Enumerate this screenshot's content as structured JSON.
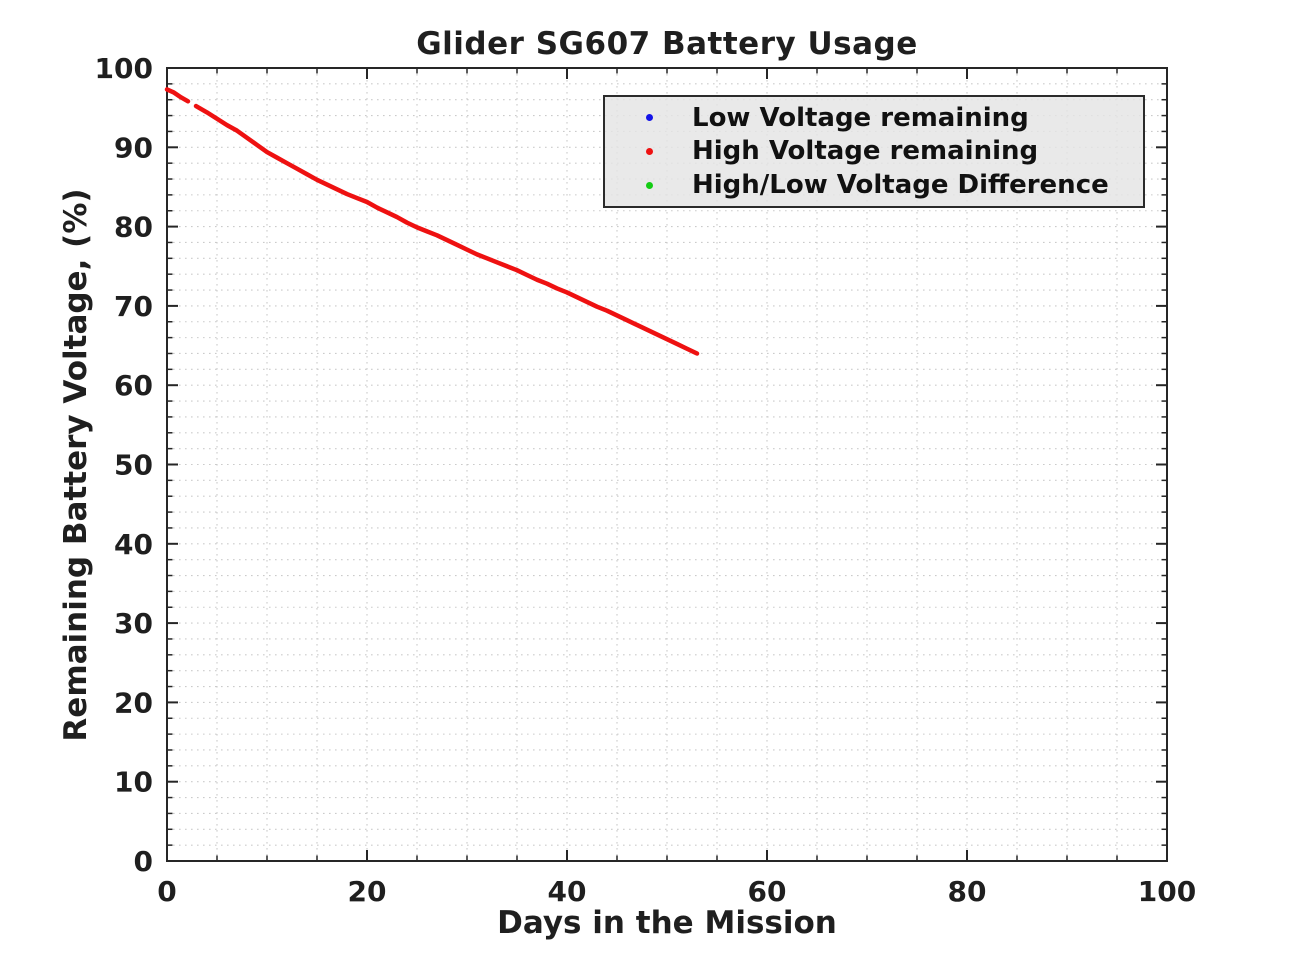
{
  "chart_data": {
    "type": "scatter",
    "title": "Glider SG607 Battery Usage",
    "xlabel": "Days in the Mission",
    "ylabel": "Remaining Battery Voltage, (%)",
    "xlim": [
      0,
      100
    ],
    "ylim": [
      0,
      100
    ],
    "x_major_ticks": [
      0,
      20,
      40,
      60,
      80,
      100
    ],
    "y_major_ticks": [
      0,
      10,
      20,
      30,
      40,
      50,
      60,
      70,
      80,
      90,
      100
    ],
    "x_minor_step": 5,
    "y_minor_step": 2,
    "grid": "minor dotted grid on, box on, ticks inward on all four sides",
    "grid_color": "#cbcbcb",
    "axis_color": "#262626",
    "legend": {
      "position": "upper right",
      "background": "#e4e4e4",
      "entries": [
        {
          "label": "Low Voltage remaining",
          "color": "#1414e8",
          "marker": "dot"
        },
        {
          "label": "High Voltage remaining",
          "color": "#ee1111",
          "marker": "dot"
        },
        {
          "label": "High/Low Voltage Difference",
          "color": "#14cc14",
          "marker": "dot"
        }
      ]
    },
    "series": [
      {
        "name": "High Voltage remaining",
        "color": "#ee1111",
        "style": "thick dotted-marker line, small data gap near day 2.5",
        "segments": [
          [
            [
              0,
              97.3
            ],
            [
              0.7,
              96.9
            ],
            [
              1.4,
              96.3
            ],
            [
              2.1,
              95.8
            ]
          ],
          [
            [
              2.9,
              95.2
            ],
            [
              4,
              94.4
            ],
            [
              5,
              93.6
            ],
            [
              6,
              92.8
            ],
            [
              7,
              92.1
            ],
            [
              8,
              91.2
            ],
            [
              9,
              90.3
            ],
            [
              10,
              89.4
            ],
            [
              11,
              88.7
            ],
            [
              12,
              88.0
            ],
            [
              13,
              87.3
            ],
            [
              14,
              86.6
            ],
            [
              15,
              85.9
            ],
            [
              16,
              85.3
            ],
            [
              17,
              84.7
            ],
            [
              18,
              84.1
            ],
            [
              19,
              83.6
            ],
            [
              20,
              83.1
            ],
            [
              21,
              82.4
            ],
            [
              22,
              81.8
            ],
            [
              23,
              81.2
            ],
            [
              24,
              80.5
            ],
            [
              25,
              79.9
            ],
            [
              26,
              79.4
            ],
            [
              27,
              78.9
            ],
            [
              28,
              78.3
            ],
            [
              29,
              77.7
            ],
            [
              30,
              77.1
            ],
            [
              31,
              76.5
            ],
            [
              32,
              76.0
            ],
            [
              33,
              75.5
            ],
            [
              34,
              75.0
            ],
            [
              35,
              74.5
            ],
            [
              36,
              73.9
            ],
            [
              37,
              73.3
            ],
            [
              38,
              72.8
            ],
            [
              39,
              72.2
            ],
            [
              40,
              71.7
            ],
            [
              41,
              71.1
            ],
            [
              42,
              70.5
            ],
            [
              43,
              69.9
            ],
            [
              44,
              69.4
            ],
            [
              45,
              68.8
            ],
            [
              46,
              68.2
            ],
            [
              47,
              67.6
            ],
            [
              48,
              67.0
            ],
            [
              49,
              66.4
            ],
            [
              50,
              65.8
            ],
            [
              51,
              65.2
            ],
            [
              52,
              64.6
            ],
            [
              53,
              64.0
            ]
          ]
        ]
      }
    ]
  }
}
